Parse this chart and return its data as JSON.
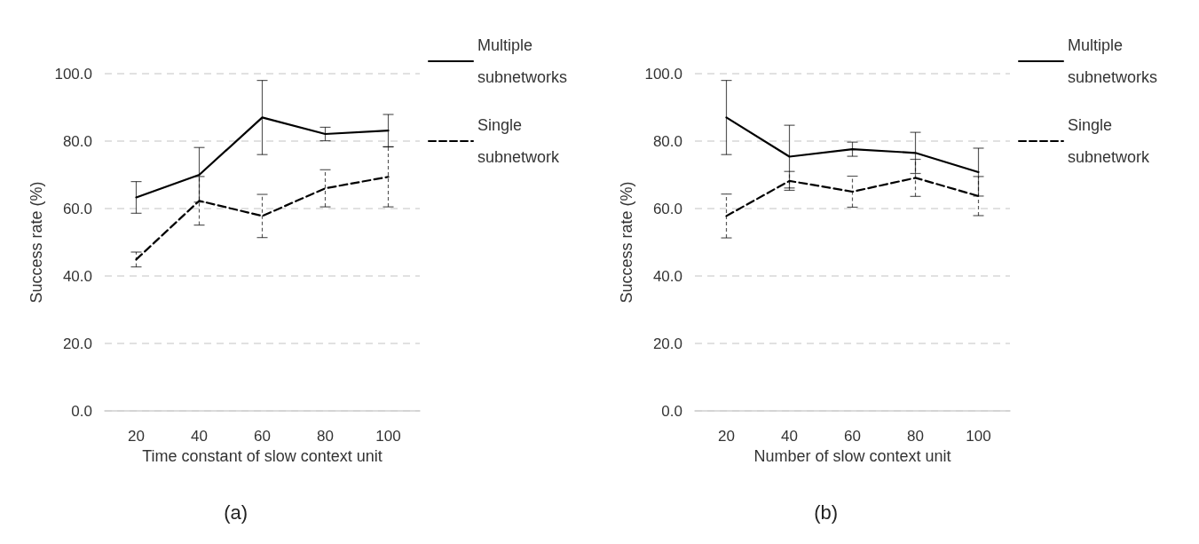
{
  "chart_data": [
    {
      "type": "line",
      "xlabel": "Time constant of slow context unit",
      "ylabel": "Success rate (%)",
      "categories": [
        "20",
        "40",
        "60",
        "80",
        "100"
      ],
      "series": [
        {
          "name": "Multiple subnetworks",
          "color": "#000000",
          "line_style": "solid",
          "values": [
            63.3,
            70.0,
            87.0,
            82.1,
            83.1
          ],
          "errors": [
            4.7,
            8.1,
            11.0,
            2.0,
            4.8
          ]
        },
        {
          "name": "Single subnetwork",
          "color": "#000000",
          "line_style": "dashed",
          "values": [
            44.9,
            62.3,
            57.8,
            66.0,
            69.4
          ],
          "errors": [
            2.2,
            7.2,
            6.4,
            5.5,
            8.9
          ]
        }
      ],
      "ylim": [
        0,
        100
      ],
      "yticks": [
        {
          "value": 0,
          "label": "0.0"
        },
        {
          "value": 20,
          "label": "20.0"
        },
        {
          "value": 40,
          "label": "40.0"
        },
        {
          "value": 60,
          "label": "60.0"
        },
        {
          "value": 80,
          "label": "80.0"
        },
        {
          "value": 100,
          "label": "100.0"
        }
      ],
      "grid": "y",
      "legend": "top right",
      "marker": "none",
      "annotations": [
        "(a)"
      ]
    },
    {
      "type": "line",
      "xlabel": "Number of slow context unit",
      "ylabel": "Success rate (%)",
      "categories": [
        "20",
        "40",
        "60",
        "80",
        "100"
      ],
      "series": [
        {
          "name": "Multiple subnetworks",
          "color": "#000000",
          "line_style": "solid",
          "values": [
            87.0,
            75.4,
            77.6,
            76.5,
            70.8
          ],
          "errors": [
            11.0,
            9.3,
            2.1,
            6.1,
            7.1
          ]
        },
        {
          "name": "Single subnetwork",
          "color": "#000000",
          "line_style": "dashed",
          "values": [
            57.8,
            68.2,
            65.0,
            69.1,
            63.7
          ],
          "errors": [
            6.5,
            2.8,
            4.6,
            5.5,
            5.8
          ]
        }
      ],
      "ylim": [
        0,
        100
      ],
      "yticks": [
        {
          "value": 0,
          "label": "0.0"
        },
        {
          "value": 20,
          "label": "20.0"
        },
        {
          "value": 40,
          "label": "40.0"
        },
        {
          "value": 60,
          "label": "60.0"
        },
        {
          "value": 80,
          "label": "80.0"
        },
        {
          "value": 100,
          "label": "100.0"
        }
      ],
      "grid": "y",
      "legend": "top right",
      "marker": "none",
      "annotations": [
        "(b)"
      ]
    }
  ]
}
